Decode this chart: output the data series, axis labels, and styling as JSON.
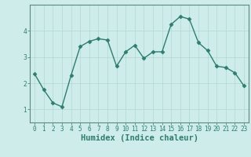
{
  "x": [
    0,
    1,
    2,
    3,
    4,
    5,
    6,
    7,
    8,
    9,
    10,
    11,
    12,
    13,
    14,
    15,
    16,
    17,
    18,
    19,
    20,
    21,
    22,
    23
  ],
  "y": [
    2.35,
    1.75,
    1.25,
    1.1,
    2.3,
    3.4,
    3.6,
    3.7,
    3.65,
    2.65,
    3.2,
    3.45,
    2.95,
    3.2,
    3.2,
    4.25,
    4.55,
    4.45,
    3.55,
    3.25,
    2.65,
    2.6,
    2.4,
    1.9
  ],
  "line_color": "#2e7d6e",
  "bg_color": "#ceecea",
  "grid_color": "#b0d8d4",
  "xlabel": "Humidex (Indice chaleur)",
  "xlim": [
    -0.5,
    23.5
  ],
  "ylim": [
    0.5,
    5.0
  ],
  "yticks": [
    1,
    2,
    3,
    4
  ],
  "xticks": [
    0,
    1,
    2,
    3,
    4,
    5,
    6,
    7,
    8,
    9,
    10,
    11,
    12,
    13,
    14,
    15,
    16,
    17,
    18,
    19,
    20,
    21,
    22,
    23
  ],
  "marker": "D",
  "markersize": 2.5,
  "linewidth": 1.0,
  "xlabel_fontsize": 7.5,
  "tick_fontsize": 5.5,
  "axis_color": "#2e7d6e",
  "spine_color": "#5a8a80"
}
